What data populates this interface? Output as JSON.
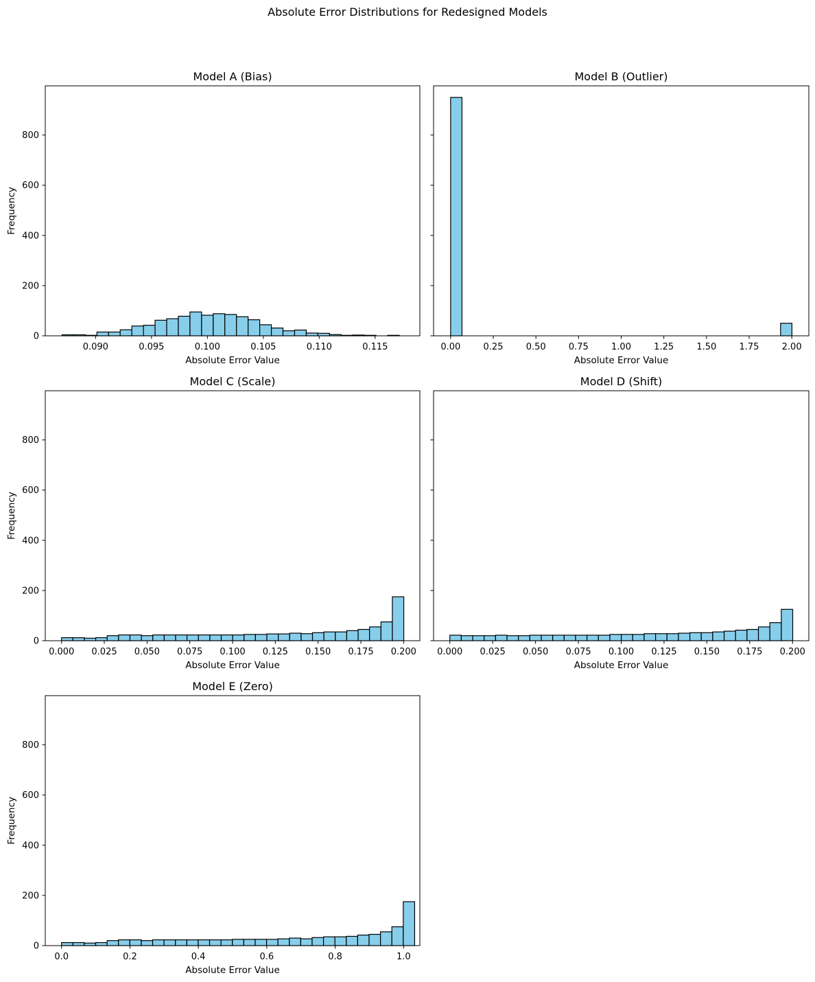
{
  "figure": {
    "suptitle": "Absolute Error Distributions for Redesigned Models",
    "bar_color": "#87CEEB",
    "edge_color": "#000000",
    "sharey": true
  },
  "chart_data": [
    {
      "type": "bar",
      "title": "Model A (Bias)",
      "xlabel": "Absolute Error Value",
      "ylabel": "Frequency",
      "xlim": [
        0.0855,
        0.119
      ],
      "ylim": [
        0,
        996
      ],
      "xticks": [
        0.09,
        0.095,
        0.1,
        0.105,
        0.11,
        0.115
      ],
      "xtick_labels": [
        "0.090",
        "0.095",
        "0.100",
        "0.105",
        "0.110",
        "0.115"
      ],
      "yticks": [
        0,
        200,
        400,
        600,
        800
      ],
      "ytick_labels": [
        "0",
        "200",
        "400",
        "600",
        "800"
      ],
      "show_yticklabels": true,
      "bin_start": 0.087,
      "bin_width": 0.00104,
      "values": [
        4,
        4,
        2,
        15,
        15,
        24,
        39,
        42,
        62,
        68,
        78,
        95,
        82,
        88,
        85,
        76,
        64,
        44,
        31,
        20,
        23,
        11,
        10,
        5,
        2,
        3,
        2,
        0,
        2,
        0
      ]
    },
    {
      "type": "bar",
      "title": "Model B (Outlier)",
      "xlabel": "Absolute Error Value",
      "ylabel": "",
      "xlim": [
        -0.1,
        2.1
      ],
      "ylim": [
        0,
        996
      ],
      "xticks": [
        0.0,
        0.25,
        0.5,
        0.75,
        1.0,
        1.25,
        1.5,
        1.75,
        2.0
      ],
      "xtick_labels": [
        "0.00",
        "0.25",
        "0.50",
        "0.75",
        "1.00",
        "1.25",
        "1.50",
        "1.75",
        "2.00"
      ],
      "yticks": [
        0,
        200,
        400,
        600,
        800
      ],
      "ytick_labels": [
        "0",
        "200",
        "400",
        "600",
        "800"
      ],
      "show_yticklabels": false,
      "bin_start": 0.0,
      "bin_width": 0.0667,
      "values": [
        950,
        0,
        0,
        0,
        0,
        0,
        0,
        0,
        0,
        0,
        0,
        0,
        0,
        0,
        0,
        0,
        0,
        0,
        0,
        0,
        0,
        0,
        0,
        0,
        0,
        0,
        0,
        0,
        0,
        50
      ]
    },
    {
      "type": "bar",
      "title": "Model C (Scale)",
      "xlabel": "Absolute Error Value",
      "ylabel": "Frequency",
      "xlim": [
        -0.0095,
        0.2095
      ],
      "ylim": [
        0,
        996
      ],
      "xticks": [
        0.0,
        0.025,
        0.05,
        0.075,
        0.1,
        0.125,
        0.15,
        0.175,
        0.2
      ],
      "xtick_labels": [
        "0.000",
        "0.025",
        "0.050",
        "0.075",
        "0.100",
        "0.125",
        "0.150",
        "0.175",
        "0.200"
      ],
      "yticks": [
        0,
        200,
        400,
        600,
        800
      ],
      "ytick_labels": [
        "0",
        "200",
        "400",
        "600",
        "800"
      ],
      "show_yticklabels": true,
      "bin_start": 0.0,
      "bin_width": 0.00667,
      "values": [
        12,
        12,
        10,
        12,
        20,
        23,
        23,
        20,
        23,
        23,
        23,
        23,
        23,
        23,
        23,
        23,
        25,
        25,
        27,
        27,
        30,
        28,
        32,
        35,
        35,
        40,
        45,
        55,
        75,
        175
      ]
    },
    {
      "type": "bar",
      "title": "Model D (Shift)",
      "xlabel": "Absolute Error Value",
      "ylabel": "",
      "xlim": [
        -0.0095,
        0.2095
      ],
      "ylim": [
        0,
        996
      ],
      "xticks": [
        0.0,
        0.025,
        0.05,
        0.075,
        0.1,
        0.125,
        0.15,
        0.175,
        0.2
      ],
      "xtick_labels": [
        "0.000",
        "0.025",
        "0.050",
        "0.075",
        "0.100",
        "0.125",
        "0.150",
        "0.175",
        "0.200"
      ],
      "yticks": [
        0,
        200,
        400,
        600,
        800
      ],
      "ytick_labels": [
        "0",
        "200",
        "400",
        "600",
        "800"
      ],
      "show_yticklabels": false,
      "bin_start": 0.0,
      "bin_width": 0.00667,
      "values": [
        22,
        20,
        20,
        20,
        22,
        20,
        20,
        22,
        22,
        22,
        22,
        22,
        22,
        22,
        25,
        25,
        25,
        28,
        28,
        28,
        30,
        32,
        32,
        35,
        38,
        42,
        45,
        55,
        72,
        125
      ]
    },
    {
      "type": "bar",
      "title": "Model E (Zero)",
      "xlabel": "Absolute Error Value",
      "ylabel": "Frequency",
      "xlim": [
        -0.0475,
        1.0475
      ],
      "ylim": [
        0,
        996
      ],
      "xticks": [
        0.0,
        0.2,
        0.4,
        0.6,
        0.8,
        1.0
      ],
      "xtick_labels": [
        "0.0",
        "0.2",
        "0.4",
        "0.6",
        "0.8",
        "1.0"
      ],
      "yticks": [
        0,
        200,
        400,
        600,
        800
      ],
      "ytick_labels": [
        "0",
        "200",
        "400",
        "600",
        "800"
      ],
      "show_yticklabels": true,
      "bin_start": 0.0,
      "bin_width": 0.0333,
      "values": [
        12,
        12,
        10,
        12,
        20,
        23,
        23,
        20,
        23,
        23,
        23,
        23,
        23,
        23,
        23,
        25,
        25,
        25,
        25,
        27,
        30,
        27,
        32,
        35,
        35,
        37,
        42,
        45,
        55,
        75,
        175
      ]
    }
  ]
}
